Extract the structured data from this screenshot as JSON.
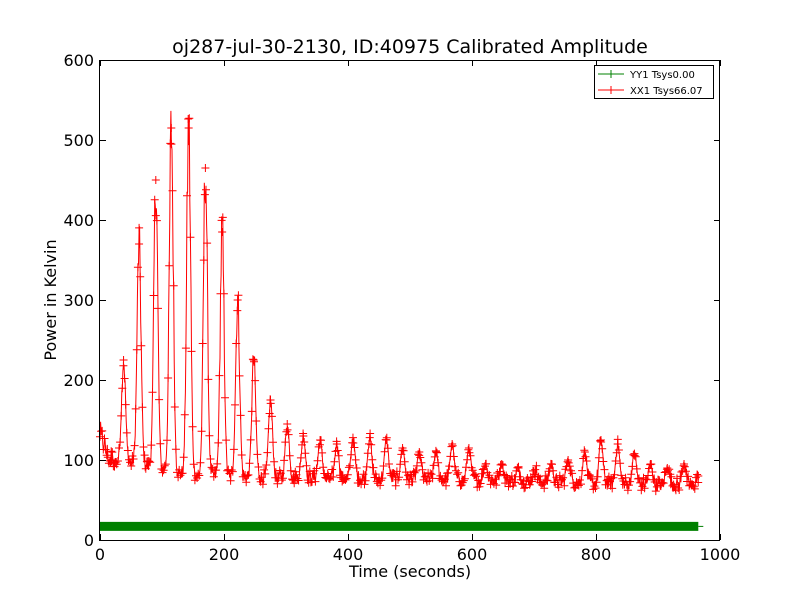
{
  "chart_data": {
    "type": "line",
    "title": "oj287-jul-30-2130, ID:40975 Calibrated Amplitude",
    "xlabel": "Time (seconds)",
    "ylabel": "Power in Kelvin",
    "xlim": [
      0,
      1000
    ],
    "ylim": [
      0,
      600
    ],
    "xticks": [
      0,
      200,
      400,
      600,
      800,
      1000
    ],
    "yticks": [
      0,
      100,
      200,
      300,
      400,
      500,
      600
    ],
    "grid": false,
    "legend_position": "top-right",
    "marker": "+",
    "series": [
      {
        "name": "YY1 Tsys0.00",
        "color": "#008000",
        "x_range": [
          0,
          965
        ],
        "approx_value": 17,
        "x": [
          0,
          965
        ],
        "y": [
          17,
          17
        ]
      },
      {
        "name": "XX1 Tsys66.07",
        "color": "#ff0000",
        "x_range": [
          0,
          965
        ],
        "baseline_trend": [
          [
            0,
            135
          ],
          [
            15,
            100
          ],
          [
            60,
            95
          ],
          [
            150,
            80
          ],
          [
            300,
            78
          ],
          [
            600,
            75
          ],
          [
            965,
            68
          ]
        ],
        "peaks": [
          {
            "x": 38,
            "y": 225
          },
          {
            "x": 63,
            "y": 370
          },
          {
            "x": 90,
            "y": 450
          },
          {
            "x": 115,
            "y": 515
          },
          {
            "x": 143,
            "y": 515
          },
          {
            "x": 170,
            "y": 465
          },
          {
            "x": 197,
            "y": 385
          },
          {
            "x": 222,
            "y": 300
          },
          {
            "x": 248,
            "y": 225
          },
          {
            "x": 275,
            "y": 175
          },
          {
            "x": 302,
            "y": 145
          },
          {
            "x": 328,
            "y": 130
          },
          {
            "x": 355,
            "y": 125
          },
          {
            "x": 382,
            "y": 120
          },
          {
            "x": 408,
            "y": 128
          },
          {
            "x": 435,
            "y": 128
          },
          {
            "x": 462,
            "y": 125
          },
          {
            "x": 488,
            "y": 115
          },
          {
            "x": 515,
            "y": 110
          },
          {
            "x": 542,
            "y": 110
          },
          {
            "x": 568,
            "y": 120
          },
          {
            "x": 595,
            "y": 115
          },
          {
            "x": 622,
            "y": 95
          },
          {
            "x": 648,
            "y": 95
          },
          {
            "x": 675,
            "y": 90
          },
          {
            "x": 702,
            "y": 88
          },
          {
            "x": 728,
            "y": 95
          },
          {
            "x": 755,
            "y": 100
          },
          {
            "x": 782,
            "y": 110
          },
          {
            "x": 808,
            "y": 125
          },
          {
            "x": 835,
            "y": 120
          },
          {
            "x": 862,
            "y": 108
          },
          {
            "x": 888,
            "y": 95
          },
          {
            "x": 915,
            "y": 90
          },
          {
            "x": 942,
            "y": 95
          },
          {
            "x": 965,
            "y": 80
          }
        ]
      }
    ]
  }
}
